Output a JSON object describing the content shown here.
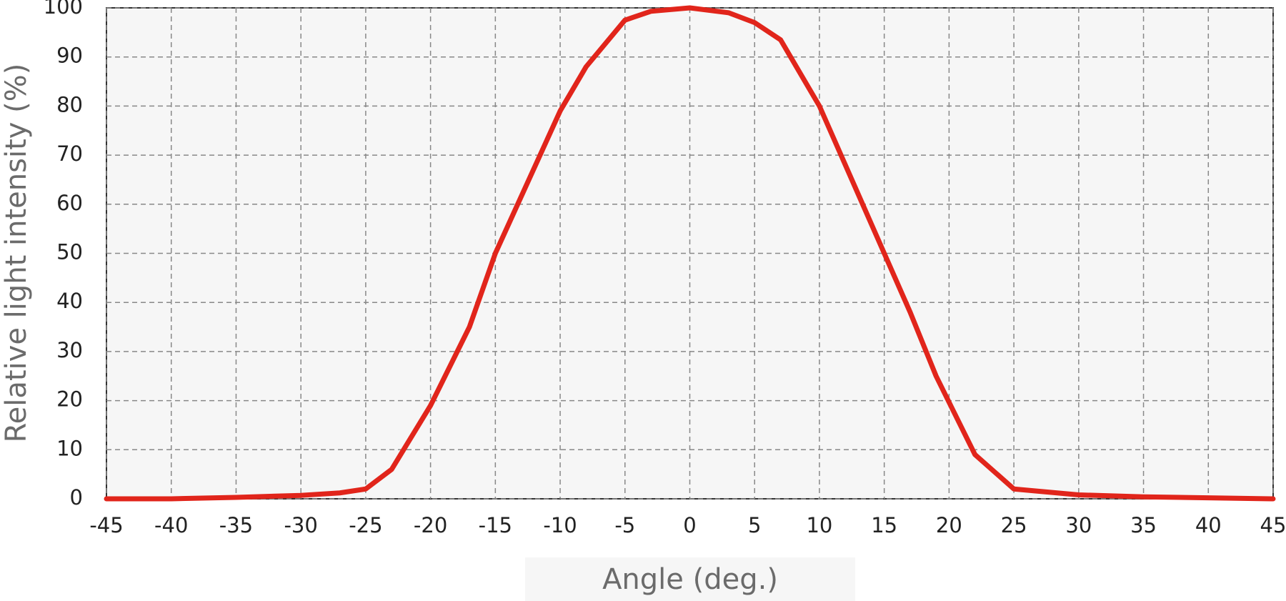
{
  "chart_data": {
    "type": "line",
    "x_label": "Angle (deg.)",
    "y_label": "Relative light intensity (%)",
    "x": [
      -45,
      -40,
      -35,
      -30,
      -27,
      -25,
      -23,
      -20,
      -17,
      -15,
      -10,
      -8,
      -5,
      -3,
      0,
      3,
      5,
      7,
      10,
      13,
      15,
      17,
      19,
      22,
      25,
      30,
      35,
      40,
      45
    ],
    "series": [
      {
        "color": "#e1251b",
        "values": [
          0,
          0,
          0.3,
          0.7,
          1.2,
          2,
          6,
          19,
          35,
          50,
          79,
          88,
          97.5,
          99.3,
          100,
          99,
          97,
          93.5,
          80,
          62,
          50,
          38,
          25,
          9,
          2,
          0.8,
          0.4,
          0.2,
          0
        ]
      }
    ],
    "xlim": [
      -45,
      45
    ],
    "ylim": [
      0,
      100
    ],
    "xticks": [
      -45,
      -40,
      -35,
      -30,
      -25,
      -20,
      -15,
      -10,
      -5,
      0,
      5,
      10,
      15,
      20,
      25,
      30,
      35,
      40,
      45
    ],
    "yticks": [
      0,
      10,
      20,
      30,
      40,
      50,
      60,
      70,
      80,
      90,
      100
    ],
    "grid": true
  }
}
